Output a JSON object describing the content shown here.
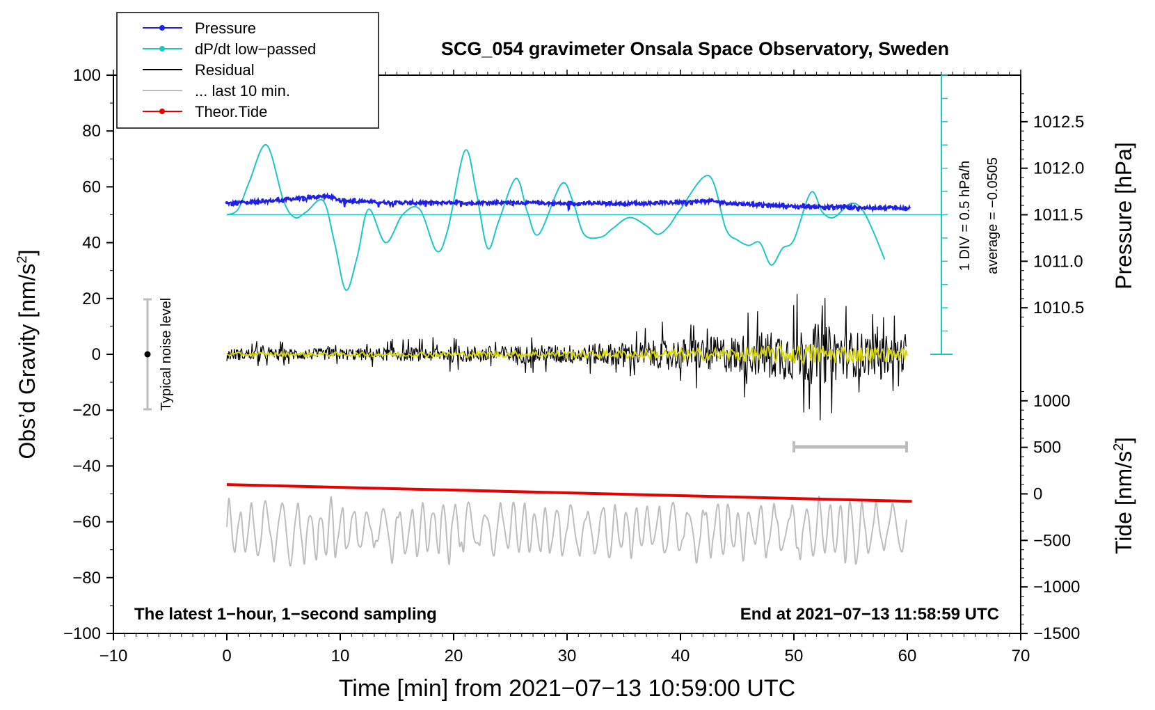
{
  "chart_data": {
    "type": "line",
    "title": "SCG_054 gravimeter Onsala Space Observatory, Sweden",
    "xlabel": "Time [min] from 2021−07−13 10:59:00 UTC",
    "ylabel_left": "Obs’d Gravity [nm/s",
    "ylabel_left_sup": "2",
    "ylabel_left_end": "]",
    "ylabel_right_pressure": "Pressure [hPa]",
    "ylabel_right_tide": "Tide [nm/s",
    "ylabel_right_tide_sup": "2",
    "ylabel_right_tide_end": "]",
    "xlim": [
      -10,
      70
    ],
    "ylim_left": [
      -100,
      100
    ],
    "x_ticks": [
      "−10",
      "0",
      "10",
      "20",
      "30",
      "40",
      "50",
      "60",
      "70"
    ],
    "y_left_ticks": [
      "100",
      "80",
      "60",
      "40",
      "20",
      "0",
      "−20",
      "−40",
      "−60",
      "−80",
      "−100"
    ],
    "pressure_ticks": [
      "1012.5",
      "1012.0",
      "1011.5",
      "1011.0",
      "1010.5"
    ],
    "tide_ticks": [
      "1000",
      "500",
      "0",
      "−500",
      "−1000",
      "−1500"
    ],
    "legend": [
      {
        "label": "Pressure",
        "color": "#1f1fe6",
        "marker": true
      },
      {
        "label": "dP/dt low−passed",
        "color": "#1cc6c6",
        "marker": true
      },
      {
        "label": "Residual",
        "color": "#000000",
        "marker": false
      },
      {
        "label": "... last 10 min.",
        "color": "#bdbdbd",
        "marker": false
      },
      {
        "label": "Theor.Tide",
        "color": "#e60000",
        "marker": true
      }
    ],
    "annotations": {
      "noise_label": "Typical noise level",
      "div_label": "1 DIV = 0.5 hPa/h",
      "average_label": "average = −0.0505",
      "bottom_left": "The latest 1−hour, 1−second sampling",
      "bottom_right": "End at 2021−07−13 11:58:59 UTC"
    },
    "series": [
      {
        "name": "Pressure",
        "units": "hPa",
        "x": [
          0,
          5,
          9,
          10,
          15,
          20,
          25,
          30,
          35,
          40,
          42,
          45,
          50,
          55,
          60
        ],
        "values": [
          1011.62,
          1011.66,
          1011.7,
          1011.65,
          1011.63,
          1011.63,
          1011.63,
          1011.62,
          1011.62,
          1011.63,
          1011.65,
          1011.62,
          1011.59,
          1011.58,
          1011.57
        ]
      },
      {
        "name": "dP/dt low−passed",
        "units": "nm/s2 scale",
        "x": [
          0,
          1,
          2,
          3.5,
          5,
          6,
          7,
          8.5,
          9.5,
          10.5,
          11.5,
          12.5,
          14,
          15.5,
          17,
          18.5,
          19.5,
          21,
          22,
          23,
          24,
          25.5,
          26.5,
          27.5,
          29.5,
          30.5,
          31.5,
          33,
          34,
          35.5,
          37,
          38,
          39,
          40,
          42.5,
          44,
          45,
          46,
          47,
          48,
          49,
          50,
          51.5,
          52.5,
          53.5,
          55,
          56,
          57,
          58
        ],
        "values": [
          50,
          52,
          62,
          75,
          55,
          49,
          51,
          55,
          40,
          23,
          35,
          52,
          40,
          50,
          52,
          37,
          45,
          73,
          58,
          38,
          48,
          63,
          51,
          43,
          61,
          55,
          43,
          42,
          45,
          49,
          46,
          43,
          46,
          52,
          64,
          45,
          41,
          39,
          40,
          32,
          38,
          41,
          58,
          51,
          49,
          54,
          52,
          44,
          34
        ]
      },
      {
        "name": "Residual",
        "units": "nm/s2",
        "x": [
          0,
          10,
          20,
          30,
          35,
          40,
          45,
          50,
          52,
          55,
          60
        ],
        "values_amplitude": [
          3,
          3,
          4,
          5,
          6,
          8,
          10,
          14,
          16,
          12,
          9
        ]
      },
      {
        "name": "... last 10 min.",
        "units": "nm/s2 (offset)",
        "x": [
          0,
          60
        ],
        "values_center": [
          -63,
          -63
        ],
        "values_amplitude": [
          9,
          9
        ]
      },
      {
        "name": "Theor.Tide",
        "units": "nm/s2",
        "x": [
          0,
          60
        ],
        "values": [
          100,
          -80
        ]
      }
    ]
  }
}
